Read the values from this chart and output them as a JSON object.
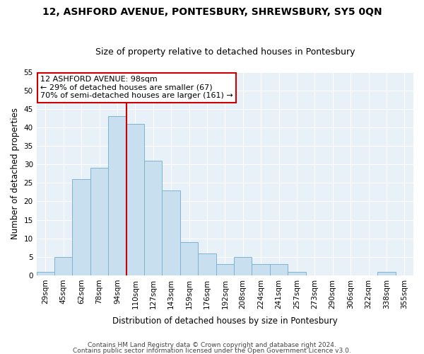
{
  "title": "12, ASHFORD AVENUE, PONTESBURY, SHREWSBURY, SY5 0QN",
  "subtitle": "Size of property relative to detached houses in Pontesbury",
  "xlabel": "Distribution of detached houses by size in Pontesbury",
  "ylabel": "Number of detached properties",
  "bar_color": "#c8dff0",
  "bar_edge_color": "#7fb3d3",
  "bin_labels": [
    "29sqm",
    "45sqm",
    "62sqm",
    "78sqm",
    "94sqm",
    "110sqm",
    "127sqm",
    "143sqm",
    "159sqm",
    "176sqm",
    "192sqm",
    "208sqm",
    "224sqm",
    "241sqm",
    "257sqm",
    "273sqm",
    "290sqm",
    "306sqm",
    "322sqm",
    "338sqm",
    "355sqm"
  ],
  "bar_heights": [
    1,
    5,
    26,
    29,
    43,
    41,
    31,
    23,
    9,
    6,
    3,
    5,
    3,
    3,
    1,
    0,
    0,
    0,
    0,
    1,
    0
  ],
  "ylim": [
    0,
    55
  ],
  "yticks": [
    0,
    5,
    10,
    15,
    20,
    25,
    30,
    35,
    40,
    45,
    50,
    55
  ],
  "vline_index": 4.5,
  "vline_color": "#cc0000",
  "annotation_title": "12 ASHFORD AVENUE: 98sqm",
  "annotation_line1": "← 29% of detached houses are smaller (67)",
  "annotation_line2": "70% of semi-detached houses are larger (161) →",
  "annotation_box_color": "#ffffff",
  "annotation_box_edge": "#cc0000",
  "footer_line1": "Contains HM Land Registry data © Crown copyright and database right 2024.",
  "footer_line2": "Contains public sector information licensed under the Open Government Licence v3.0.",
  "background_color": "#ffffff",
  "plot_bg_color": "#e8f0f8",
  "grid_color": "#ffffff",
  "title_fontsize": 10,
  "subtitle_fontsize": 9,
  "axis_label_fontsize": 8.5,
  "tick_fontsize": 7.5,
  "footer_fontsize": 6.5,
  "annotation_fontsize": 8
}
